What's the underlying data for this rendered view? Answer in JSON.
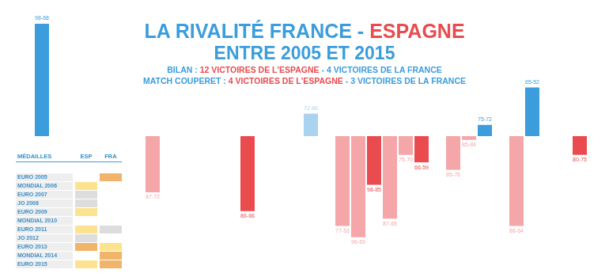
{
  "chart_data": {
    "type": "bar",
    "title": "LA RIVALITÉ FRANCE - ESPAGNE",
    "subtitle": "ENTRE 2005 ET 2015",
    "annotations": [
      "BILAN : 12 VICTOIRES DE L'ESPAGNE - 4 VICTOIRES DE LA FRANCE",
      "MATCH COUPERET : 4 VICTOIRES DE L'ESPAGNE - 3 VICTOIRES DE LA FRANCE"
    ],
    "categories": [
      "98-68",
      null,
      null,
      null,
      null,
      null,
      null,
      "87-72",
      null,
      null,
      null,
      null,
      null,
      "86-66",
      null,
      null,
      null,
      "72-66",
      null,
      "77-53",
      "96-69",
      "98-85",
      "87-65",
      "75-70",
      "66-59",
      null,
      "85-76",
      "85-84",
      "75-72",
      null,
      "88-64",
      "65-52",
      null,
      null,
      "80-75"
    ],
    "values": [
      30,
      null,
      null,
      null,
      null,
      null,
      null,
      -15,
      null,
      null,
      null,
      null,
      null,
      -20,
      null,
      null,
      null,
      6,
      null,
      -24,
      -27,
      -13,
      -22,
      -5,
      -7,
      null,
      -9,
      -1,
      3,
      null,
      -24,
      13,
      null,
      null,
      -5
    ],
    "colors": [
      "#3b9ddb",
      null,
      null,
      null,
      null,
      null,
      null,
      "#f4a6a8",
      null,
      null,
      null,
      null,
      null,
      "#e94b4f",
      null,
      null,
      null,
      "#a9d3ef",
      null,
      "#f4a6a8",
      "#f4a6a8",
      "#e94b4f",
      "#f4a6a8",
      "#f4a6a8",
      "#e94b4f",
      null,
      "#f4a6a8",
      "#f4a6a8",
      "#3b9ddb",
      null,
      "#f4a6a8",
      "#3b9ddb",
      null,
      null,
      "#e94b4f"
    ],
    "ylim": [
      -30,
      30
    ],
    "grid": false,
    "tick_labels": false
  },
  "medal_table": {
    "header": [
      "MÉDAILLES",
      "ESP",
      "FRA"
    ],
    "rows": [
      [
        "EURO 2005",
        null,
        "#f0b46a"
      ],
      [
        "MONDIAL 2006",
        "#fde28f",
        null
      ],
      [
        "EURO 2007",
        "#dddddd",
        null
      ],
      [
        "JO 2008",
        "#dddddd",
        null
      ],
      [
        "EURO 2009",
        "#fde28f",
        null
      ],
      [
        "MONDIAL 2010",
        null,
        null
      ],
      [
        "EURO 2011",
        "#fde28f",
        "#dddddd"
      ],
      [
        "JO 2012",
        "#dddddd",
        null
      ],
      [
        "EURO 2013",
        "#f0b46a",
        "#fde28f"
      ],
      [
        "MONDIAL 2014",
        null,
        "#f0b46a"
      ],
      [
        "EURO 2015",
        "#fde28f",
        "#f0b46a"
      ]
    ]
  }
}
